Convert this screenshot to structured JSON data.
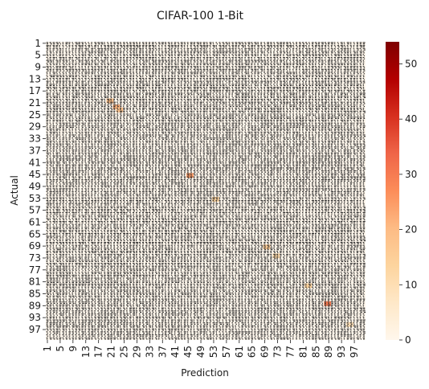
{
  "chart_data": {
    "type": "heatmap",
    "title": "CIFAR-100 1-Bit",
    "xlabel": "Prediction",
    "ylabel": "Actual",
    "n_classes": 100,
    "x_tick_labels": [
      "1",
      "5",
      "9",
      "13",
      "17",
      "21",
      "25",
      "29",
      "33",
      "37",
      "41",
      "45",
      "49",
      "53",
      "57",
      "61",
      "65",
      "69",
      "73",
      "77",
      "81",
      "85",
      "89",
      "93",
      "97"
    ],
    "y_tick_labels": [
      "1",
      "5",
      "9",
      "13",
      "17",
      "21",
      "25",
      "29",
      "33",
      "37",
      "41",
      "45",
      "49",
      "53",
      "57",
      "61",
      "65",
      "69",
      "73",
      "77",
      "81",
      "85",
      "89",
      "93",
      "97"
    ],
    "colorbar": {
      "min": 0,
      "max": 54,
      "ticks": [
        0,
        10,
        20,
        30,
        40,
        50
      ],
      "colormap": "OrRd"
    },
    "annotated_cells": true,
    "annotation_color": "#262626",
    "notable_cells": [
      {
        "actual": 20,
        "predicted": 20,
        "value": 20
      },
      {
        "actual": 22,
        "predicted": 22,
        "value": 22
      },
      {
        "actual": 23,
        "predicted": 23,
        "value": 18
      },
      {
        "actual": 45,
        "predicted": 45,
        "value": 25
      },
      {
        "actual": 53,
        "predicted": 53,
        "value": 14
      },
      {
        "actual": 69,
        "predicted": 69,
        "value": 16
      },
      {
        "actual": 72,
        "predicted": 72,
        "value": 12
      },
      {
        "actual": 82,
        "predicted": 82,
        "value": 14
      },
      {
        "actual": 88,
        "predicted": 88,
        "value": 30
      },
      {
        "actual": 95,
        "predicted": 95,
        "value": 10
      }
    ]
  }
}
